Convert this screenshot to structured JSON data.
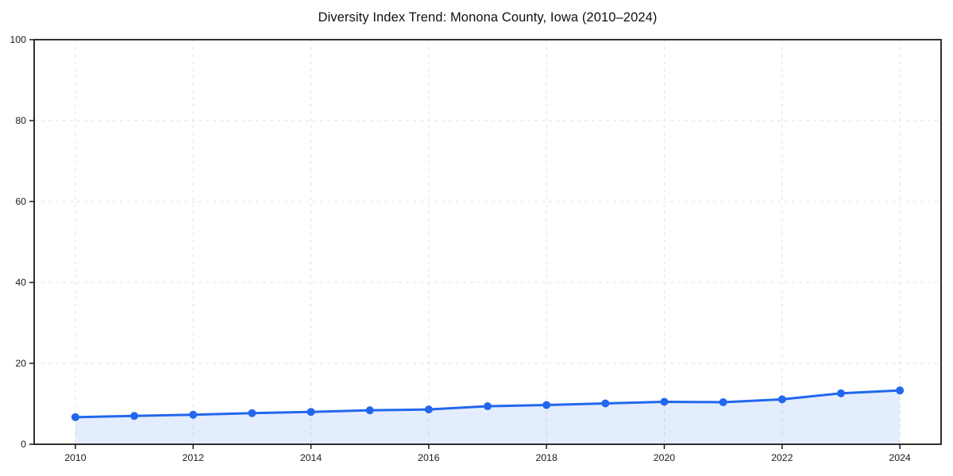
{
  "title": "Diversity Index Trend: Monona County, Iowa (2010–2024)",
  "colors": {
    "line": "#2267ee",
    "marker": "#2267ee",
    "area_fill": "rgba(37,105,240,0.12)",
    "grid": "#e1e1e1",
    "axis": "#1a1a1a",
    "tick_label": "#1a1a1a",
    "background": "#ffffff"
  },
  "chart_data": {
    "type": "area",
    "title": "Diversity Index Trend: Monona County, Iowa (2010–2024)",
    "x": [
      2010,
      2011,
      2012,
      2013,
      2014,
      2015,
      2016,
      2017,
      2018,
      2019,
      2020,
      2021,
      2022,
      2023,
      2024
    ],
    "series": [
      {
        "name": "Diversity Index",
        "values": [
          6.7,
          7.0,
          7.3,
          7.7,
          8.0,
          8.4,
          8.6,
          9.4,
          9.7,
          10.1,
          10.5,
          10.4,
          11.1,
          12.6,
          13.3
        ]
      }
    ],
    "xlabel": "",
    "ylabel": "",
    "xlim": [
      2009.3,
      2024.7
    ],
    "ylim": [
      0,
      100
    ],
    "xticks": [
      2010,
      2012,
      2014,
      2016,
      2018,
      2020,
      2022,
      2024
    ],
    "yticks": [
      0,
      20,
      40,
      60,
      80,
      100
    ],
    "grid": true,
    "grid_style": "dashed",
    "legend": false,
    "marker": "circle",
    "marker_radius": 5,
    "line_width": 3
  }
}
